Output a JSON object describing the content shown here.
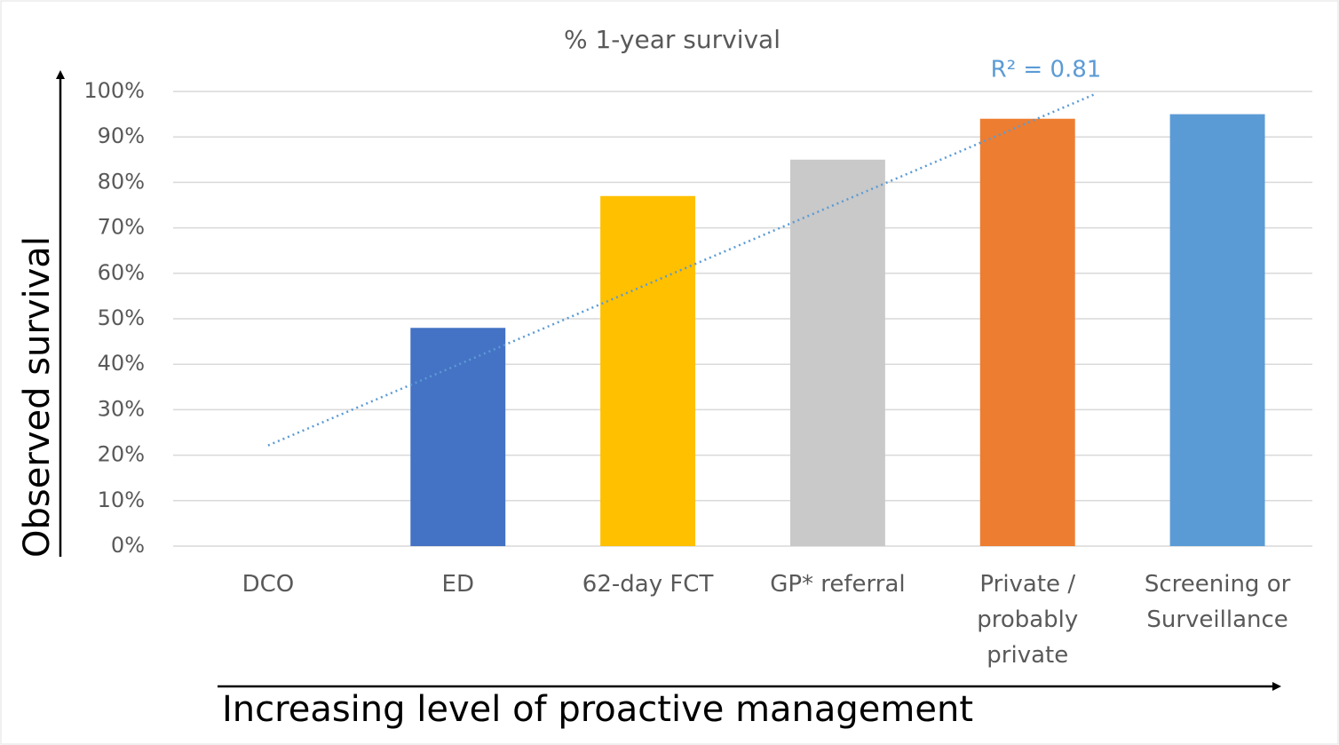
{
  "chart_data": {
    "type": "bar",
    "title": "% 1-year survival",
    "y_label": "Observed survival",
    "x_label": "Increasing level of proactive management",
    "categories": [
      "DCO",
      "ED",
      "62-day FCT",
      "GP* referral",
      "Private / probably private",
      "Screening or Surveillance"
    ],
    "values": [
      0,
      48,
      77,
      85,
      94,
      95
    ],
    "colors": [
      "#4472c4",
      "#4472c4",
      "#ffc000",
      "#c9c9c9",
      "#ed7d31",
      "#5b9bd5"
    ],
    "ylim": [
      0,
      100
    ],
    "yticks": [
      {
        "value": 0,
        "label": "0%"
      },
      {
        "value": 10,
        "label": "10%"
      },
      {
        "value": 20,
        "label": "20%"
      },
      {
        "value": 30,
        "label": "30%"
      },
      {
        "value": 40,
        "label": "40%"
      },
      {
        "value": 50,
        "label": "50%"
      },
      {
        "value": 60,
        "label": "60%"
      },
      {
        "value": 70,
        "label": "70%"
      },
      {
        "value": 80,
        "label": "80%"
      },
      {
        "value": 90,
        "label": "90%"
      },
      {
        "value": 100,
        "label": "100%"
      }
    ],
    "grid": true,
    "trendline": {
      "kind": "linear",
      "color": "#5b9bd5",
      "annotation": "R² = 0.81"
    }
  }
}
